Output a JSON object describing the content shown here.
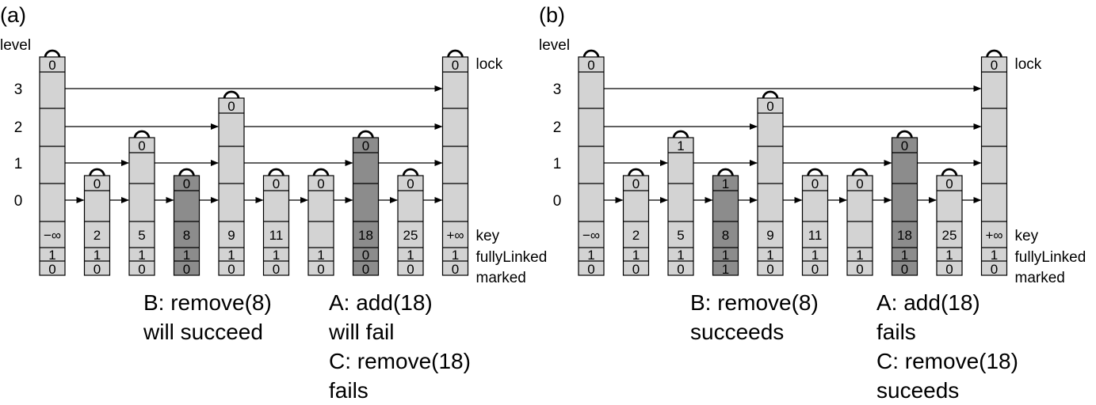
{
  "panels": [
    {
      "tag": "(a)",
      "level_title": "level",
      "level_labels": [
        "3",
        "2",
        "1",
        "0"
      ],
      "side_labels": {
        "lock": "lock",
        "key": "key",
        "fully_linked": "fullyLinked",
        "marked": "marked"
      },
      "nodes": [
        {
          "key": "−∞",
          "height": 4,
          "lock": "0",
          "fully_linked": "1",
          "marked": "0",
          "shade": "light"
        },
        {
          "key": "2",
          "height": 1,
          "lock": "0",
          "fully_linked": "1",
          "marked": "0",
          "shade": "light"
        },
        {
          "key": "5",
          "height": 2,
          "lock": "0",
          "fully_linked": "1",
          "marked": "0",
          "shade": "light"
        },
        {
          "key": "8",
          "height": 1,
          "lock": "0",
          "fully_linked": "1",
          "marked": "0",
          "shade": "dark"
        },
        {
          "key": "9",
          "height": 3,
          "lock": "0",
          "fully_linked": "1",
          "marked": "0",
          "shade": "light"
        },
        {
          "key": "11",
          "height": 1,
          "lock": "0",
          "fully_linked": "1",
          "marked": "0",
          "shade": "light"
        },
        {
          "key": "",
          "height": 1,
          "lock": "0",
          "fully_linked": "1",
          "marked": "0",
          "shade": "light"
        },
        {
          "key": "18",
          "height": 2,
          "lock": "0",
          "fully_linked": "0",
          "marked": "0",
          "shade": "dark"
        },
        {
          "key": "25",
          "height": 1,
          "lock": "0",
          "fully_linked": "1",
          "marked": "0",
          "shade": "light"
        },
        {
          "key": "+∞",
          "height": 4,
          "lock": "0",
          "fully_linked": "1",
          "marked": "0",
          "shade": "light"
        }
      ],
      "caption_left": [
        "B: remove(8)",
        "will succeed"
      ],
      "caption_right": [
        "A: add(18)",
        "will fail",
        "C: remove(18)",
        "fails"
      ]
    },
    {
      "tag": "(b)",
      "level_title": "level",
      "level_labels": [
        "3",
        "2",
        "1",
        "0"
      ],
      "side_labels": {
        "lock": "lock",
        "key": "key",
        "fully_linked": "fullyLinked",
        "marked": "marked"
      },
      "nodes": [
        {
          "key": "−∞",
          "height": 4,
          "lock": "0",
          "fully_linked": "1",
          "marked": "0",
          "shade": "light"
        },
        {
          "key": "2",
          "height": 1,
          "lock": "0",
          "fully_linked": "1",
          "marked": "0",
          "shade": "light"
        },
        {
          "key": "5",
          "height": 2,
          "lock": "1",
          "fully_linked": "1",
          "marked": "0",
          "shade": "light"
        },
        {
          "key": "8",
          "height": 1,
          "lock": "1",
          "fully_linked": "1",
          "marked": "1",
          "shade": "dark"
        },
        {
          "key": "9",
          "height": 3,
          "lock": "0",
          "fully_linked": "1",
          "marked": "0",
          "shade": "light"
        },
        {
          "key": "11",
          "height": 1,
          "lock": "0",
          "fully_linked": "1",
          "marked": "0",
          "shade": "light"
        },
        {
          "key": "",
          "height": 1,
          "lock": "0",
          "fully_linked": "1",
          "marked": "0",
          "shade": "light"
        },
        {
          "key": "18",
          "height": 2,
          "lock": "0",
          "fully_linked": "1",
          "marked": "0",
          "shade": "dark"
        },
        {
          "key": "25",
          "height": 1,
          "lock": "0",
          "fully_linked": "1",
          "marked": "0",
          "shade": "light"
        },
        {
          "key": "+∞",
          "height": 4,
          "lock": "0",
          "fully_linked": "1",
          "marked": "0",
          "shade": "light"
        }
      ],
      "caption_left": [
        "B: remove(8)",
        "succeeds"
      ],
      "caption_right": [
        "A: add(18)",
        "fails",
        "C: remove(18)",
        "suceeds"
      ]
    }
  ],
  "colors": {
    "light": "#d3d3d3",
    "dark": "#8c8c8c",
    "stroke": "#000000"
  }
}
